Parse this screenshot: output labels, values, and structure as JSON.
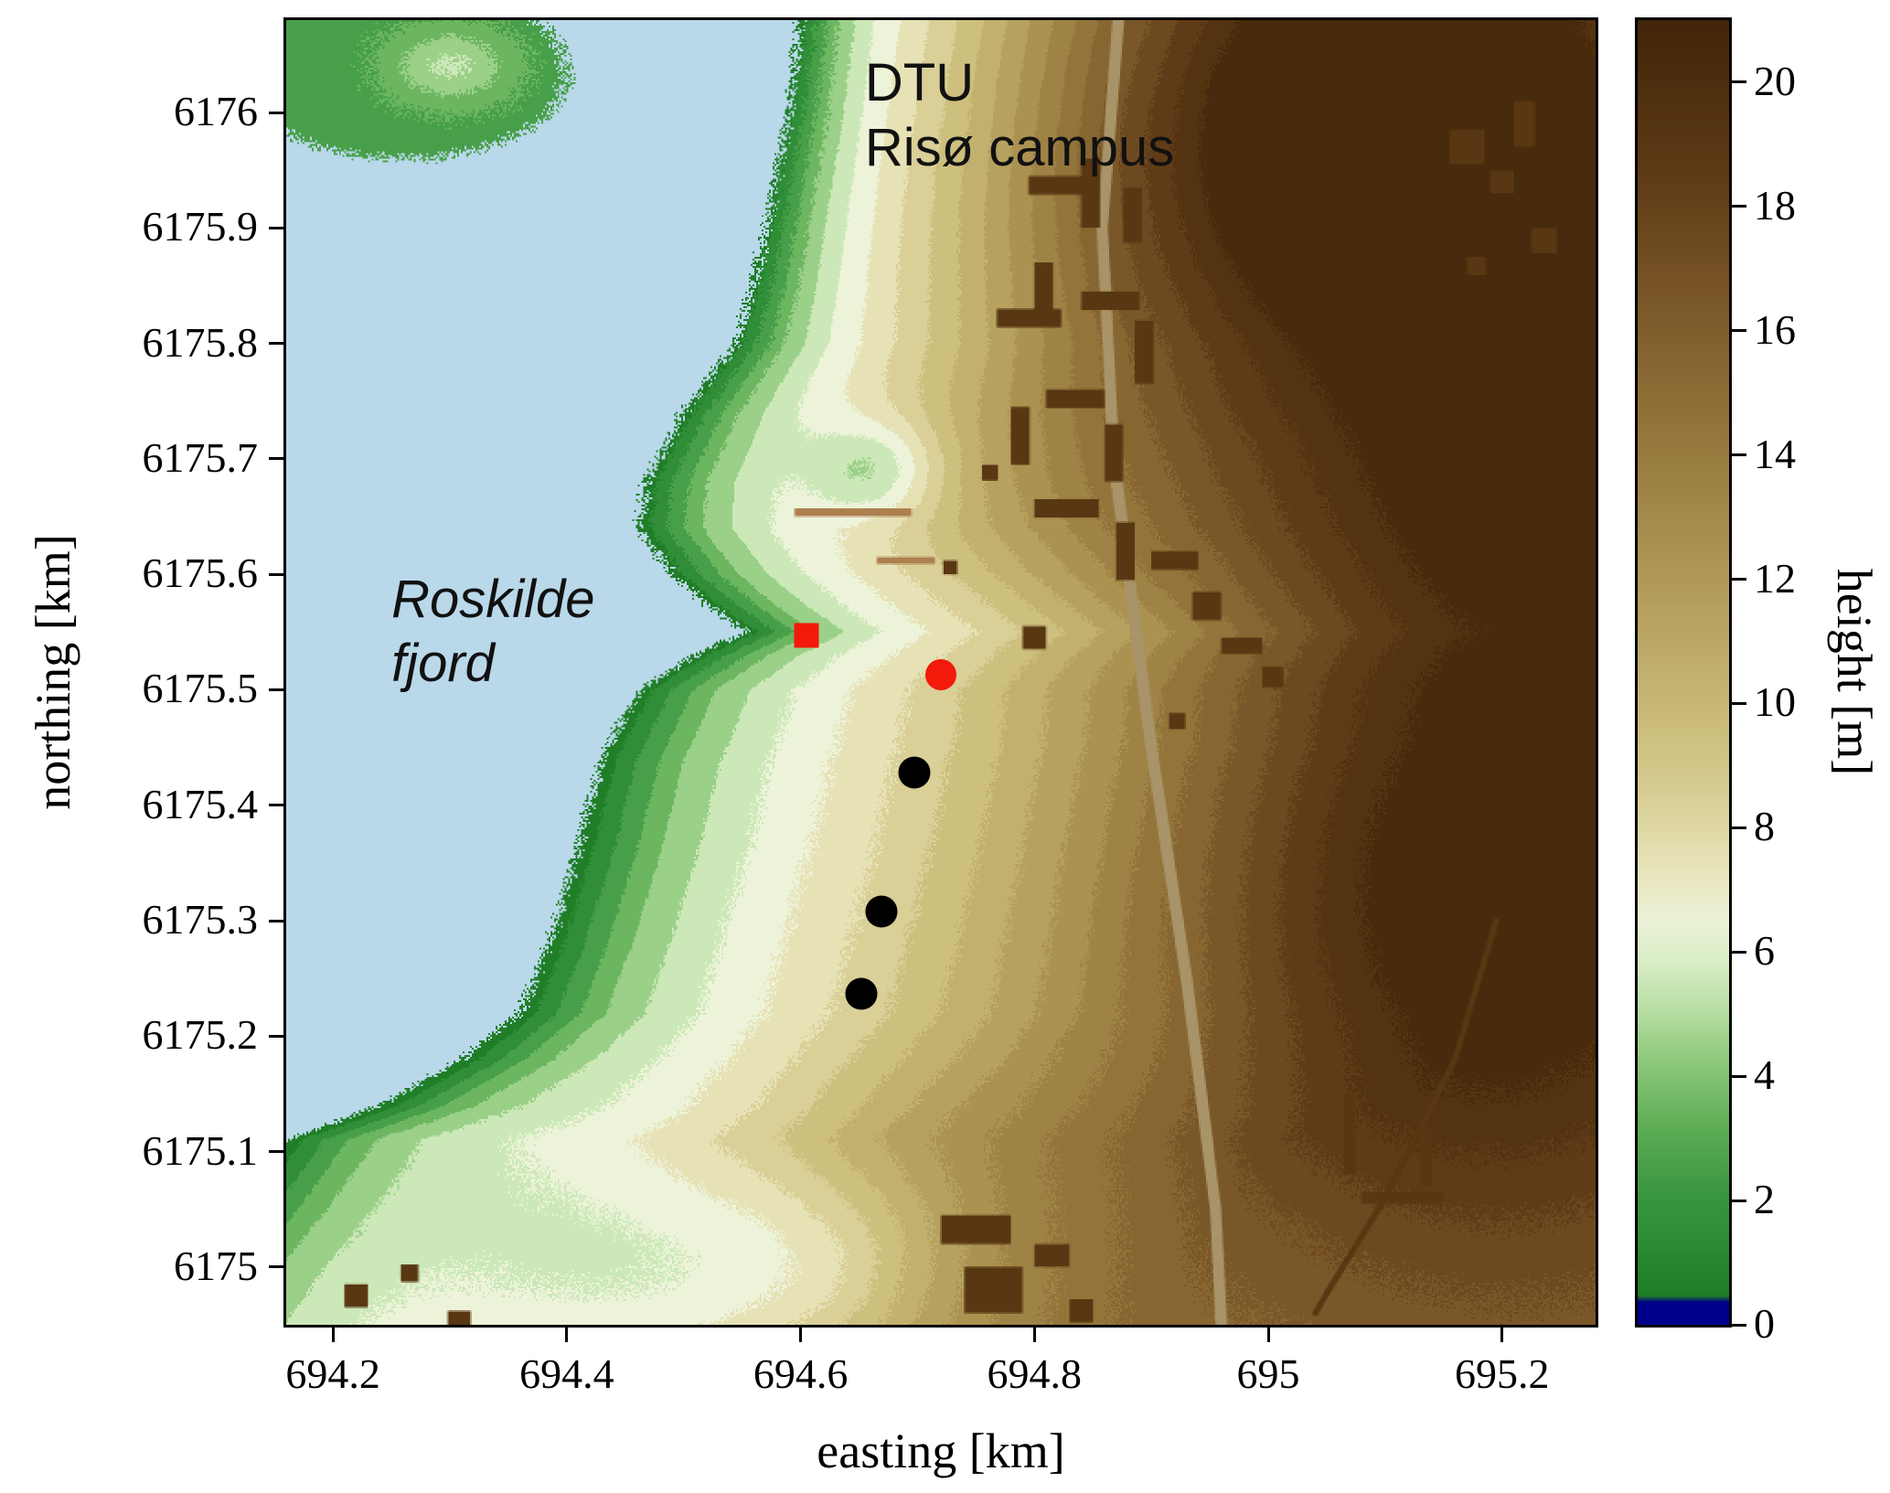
{
  "chart_data": {
    "type": "heatmap",
    "title": "",
    "xlabel": "easting [km]",
    "ylabel": "northing [km]",
    "x_range": [
      694.16,
      695.28
    ],
    "y_range": [
      6174.95,
      6176.08
    ],
    "x_ticks": {
      "values": [
        694.2,
        694.4,
        694.6,
        694.8,
        695,
        695.2
      ],
      "labels": [
        "694.2",
        "694.4",
        "694.6",
        "694.8",
        "695",
        "695.2"
      ]
    },
    "y_ticks": {
      "values": [
        6175,
        6175.1,
        6175.2,
        6175.3,
        6175.4,
        6175.5,
        6175.6,
        6175.7,
        6175.8,
        6175.9,
        6176
      ],
      "labels": [
        "6175",
        "6175.1",
        "6175.2",
        "6175.3",
        "6175.4",
        "6175.5",
        "6175.6",
        "6175.7",
        "6175.8",
        "6175.9",
        "6176"
      ]
    },
    "colorbar": {
      "label": "height [m]",
      "min": 0,
      "max": 21,
      "tick_values": [
        0,
        2,
        4,
        6,
        8,
        10,
        12,
        14,
        16,
        18,
        20
      ],
      "tick_labels": [
        "0",
        "2",
        "4",
        "6",
        "8",
        "10",
        "12",
        "14",
        "16",
        "18",
        "20"
      ],
      "colormap_stops": [
        [
          0.0,
          "#00008b"
        ],
        [
          0.35,
          "#00008b"
        ],
        [
          0.45,
          "#1f7d26"
        ],
        [
          2.0,
          "#389540"
        ],
        [
          3.2,
          "#5fae55"
        ],
        [
          4.2,
          "#8cc87b"
        ],
        [
          5.0,
          "#b5dda0"
        ],
        [
          5.8,
          "#d9eec6"
        ],
        [
          6.5,
          "#edf3d9"
        ],
        [
          7.3,
          "#e9e6bd"
        ],
        [
          8.2,
          "#dcd49e"
        ],
        [
          9.5,
          "#cdbf7e"
        ],
        [
          11.0,
          "#bca866"
        ],
        [
          12.5,
          "#ab9251"
        ],
        [
          14.0,
          "#997c40"
        ],
        [
          15.5,
          "#876631"
        ],
        [
          17.0,
          "#745024"
        ],
        [
          18.5,
          "#5f3c17"
        ],
        [
          20.0,
          "#4e2e0e"
        ],
        [
          21.0,
          "#43250a"
        ]
      ]
    },
    "water_color": "#b9d8ea",
    "annotations": {
      "campus": {
        "line1": "DTU",
        "line2": "Risø campus",
        "x": 694.655,
        "y": 6176.053,
        "style": "normal"
      },
      "fjord": {
        "line1": "Roskilde",
        "line2": "fjord",
        "x": 694.25,
        "y": 6175.606,
        "style": "italic"
      }
    },
    "markers": [
      {
        "name": "red-square-marker",
        "shape": "square",
        "color": "#f3190b",
        "x": 694.605,
        "y": 6175.547,
        "size": 27
      },
      {
        "name": "red-circle-marker",
        "shape": "circle",
        "color": "#f3190b",
        "x": 694.72,
        "y": 6175.513,
        "size": 34
      },
      {
        "name": "black-circle-marker-1",
        "shape": "circle",
        "color": "#000000",
        "x": 694.697,
        "y": 6175.428,
        "size": 35
      },
      {
        "name": "black-circle-marker-2",
        "shape": "circle",
        "color": "#000000",
        "x": 694.669,
        "y": 6175.308,
        "size": 35
      },
      {
        "name": "black-circle-marker-3",
        "shape": "circle",
        "color": "#000000",
        "x": 694.652,
        "y": 6175.237,
        "size": 35
      }
    ],
    "terrain": {
      "coast": [
        [
          6174.95,
          694.05
        ],
        [
          6175.0,
          694.08
        ],
        [
          6175.11,
          694.16
        ],
        [
          6175.14,
          694.24
        ],
        [
          6175.18,
          694.31
        ],
        [
          6175.22,
          694.36
        ],
        [
          6175.28,
          694.385
        ],
        [
          6175.36,
          694.41
        ],
        [
          6175.44,
          694.43
        ],
        [
          6175.5,
          694.462
        ],
        [
          6175.53,
          694.51
        ],
        [
          6175.55,
          694.553
        ],
        [
          6175.57,
          694.525
        ],
        [
          6175.6,
          694.49
        ],
        [
          6175.64,
          694.462
        ],
        [
          6175.68,
          694.468
        ],
        [
          6175.74,
          694.5
        ],
        [
          6175.8,
          694.545
        ],
        [
          6175.85,
          694.56
        ],
        [
          6175.92,
          694.575
        ],
        [
          6176.0,
          694.59
        ],
        [
          6176.08,
          694.6
        ]
      ],
      "profile": [
        [
          0.0,
          0.3
        ],
        [
          0.03,
          2.0
        ],
        [
          0.07,
          4.0
        ],
        [
          0.12,
          5.5
        ],
        [
          0.18,
          6.6
        ],
        [
          0.28,
          8.2
        ],
        [
          0.38,
          10.0
        ],
        [
          0.5,
          12.0
        ],
        [
          0.65,
          13.5
        ],
        [
          0.85,
          15.0
        ],
        [
          1.4,
          15.6
        ]
      ],
      "north_steepen": 1.4,
      "north_y0": 6175.45,
      "noise_amp": 0.55,
      "coast_noise_km": 0.014,
      "gaussians": [
        [
          695.18,
          6175.33,
          0.28,
          0.3,
          7.0
        ],
        [
          695.1,
          6176.02,
          0.25,
          0.2,
          7.0
        ],
        [
          695.24,
          6175.72,
          0.22,
          0.22,
          3.5
        ],
        [
          694.95,
          6175.85,
          0.25,
          0.22,
          3.0
        ],
        [
          694.665,
          6175.69,
          0.055,
          0.042,
          -3.3
        ],
        [
          694.52,
          6174.98,
          0.2,
          0.13,
          -4.5
        ],
        [
          694.63,
          6175.01,
          0.1,
          0.08,
          -1.5
        ]
      ],
      "island": {
        "cx": 694.26,
        "cy": 6176.035,
        "rx": 0.14,
        "ry": 0.075,
        "y_min": 6175.945,
        "base": 2.6,
        "peak": 2.6,
        "px": 694.3,
        "py": 6176.04,
        "psx": 0.05,
        "psy": 0.032
      },
      "building_color": "#583712",
      "buildings": [
        [
          694.795,
          6175.945,
          0.05,
          0.016
        ],
        [
          694.84,
          6175.96,
          0.016,
          0.06
        ],
        [
          694.876,
          6175.935,
          0.016,
          0.048
        ],
        [
          694.8,
          6175.87,
          0.016,
          0.05
        ],
        [
          694.768,
          6175.83,
          0.055,
          0.016
        ],
        [
          694.84,
          6175.845,
          0.05,
          0.016
        ],
        [
          694.886,
          6175.82,
          0.016,
          0.055
        ],
        [
          694.78,
          6175.745,
          0.016,
          0.05
        ],
        [
          694.81,
          6175.76,
          0.05,
          0.016
        ],
        [
          694.86,
          6175.73,
          0.016,
          0.05
        ],
        [
          694.8,
          6175.665,
          0.055,
          0.016
        ],
        [
          694.87,
          6175.645,
          0.016,
          0.05
        ],
        [
          694.9,
          6175.62,
          0.04,
          0.016
        ],
        [
          694.935,
          6175.585,
          0.025,
          0.025
        ],
        [
          694.96,
          6175.545,
          0.035,
          0.014
        ],
        [
          694.995,
          6175.52,
          0.018,
          0.018
        ],
        [
          694.755,
          6175.695,
          0.014,
          0.014
        ],
        [
          694.79,
          6175.555,
          0.02,
          0.02
        ],
        [
          694.915,
          6175.48,
          0.014,
          0.014
        ],
        [
          694.722,
          6175.612,
          0.012,
          0.012
        ],
        [
          694.72,
          6175.045,
          0.06,
          0.025
        ],
        [
          694.74,
          6175.0,
          0.05,
          0.04
        ],
        [
          694.8,
          6175.02,
          0.03,
          0.02
        ],
        [
          694.83,
          6174.972,
          0.02,
          0.02
        ],
        [
          695.155,
          6175.985,
          0.03,
          0.03
        ],
        [
          695.19,
          6175.95,
          0.02,
          0.02
        ],
        [
          695.21,
          6176.01,
          0.018,
          0.04
        ],
        [
          695.225,
          6175.9,
          0.022,
          0.022
        ],
        [
          695.17,
          6175.875,
          0.016,
          0.016
        ],
        [
          695.065,
          6175.15,
          0.01,
          0.07
        ],
        [
          695.08,
          6175.065,
          0.07,
          0.01
        ],
        [
          695.13,
          6175.12,
          0.01,
          0.05
        ],
        [
          694.21,
          6174.985,
          0.02,
          0.02
        ],
        [
          694.258,
          6175.002,
          0.015,
          0.015
        ],
        [
          694.298,
          6174.962,
          0.02,
          0.015
        ]
      ],
      "roads": [
        {
          "points": [
            [
              694.872,
              6176.08
            ],
            [
              694.858,
              6175.9
            ],
            [
              694.868,
              6175.7
            ],
            [
              694.9,
              6175.45
            ],
            [
              694.93,
              6175.25
            ],
            [
              694.955,
              6175.05
            ],
            [
              694.96,
              6174.95
            ]
          ],
          "width_km": 0.01,
          "color": "#a89468"
        },
        {
          "points": [
            [
              695.04,
              6174.96
            ],
            [
              695.1,
              6175.06
            ],
            [
              695.16,
              6175.18
            ],
            [
              695.195,
              6175.3
            ]
          ],
          "width_km": 0.005,
          "color": "#583712"
        }
      ],
      "hedges": {
        "color": "#ad7f4e",
        "rects": [
          [
            694.595,
            6175.657,
            0.1,
            0.007
          ],
          [
            694.665,
            6175.615,
            0.05,
            0.006
          ]
        ]
      }
    }
  }
}
